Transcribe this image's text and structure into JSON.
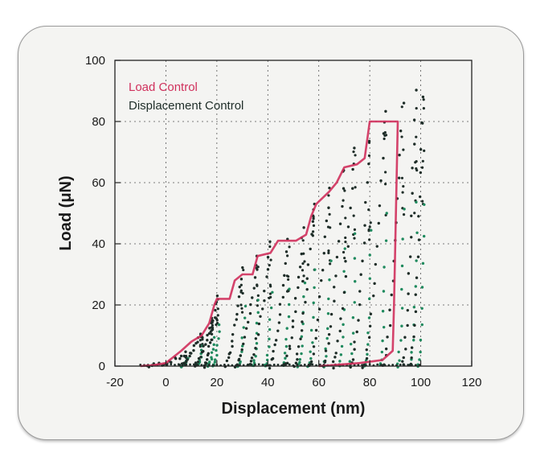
{
  "chart_data": {
    "type": "scatter",
    "title": "",
    "xlabel": "Displacement (nm)",
    "ylabel": "Load (μN)",
    "xlim": [
      -20,
      120
    ],
    "ylim": [
      0,
      100
    ],
    "xticks": [
      -20,
      0,
      20,
      40,
      60,
      80,
      100,
      120
    ],
    "yticks": [
      0,
      20,
      40,
      60,
      80,
      100
    ],
    "grid": true,
    "legend_position": "top-left",
    "colors": {
      "load_control": "#d0305c",
      "displacement_control": "#1e2d28",
      "unloading": "#1f8a5e",
      "grid": "#555555"
    },
    "series": [
      {
        "name": "Load Control",
        "style": "line",
        "points": [
          [
            -10,
            0
          ],
          [
            -5,
            0.3
          ],
          [
            0,
            1
          ],
          [
            3,
            3
          ],
          [
            6,
            5
          ],
          [
            10,
            8
          ],
          [
            14,
            10
          ],
          [
            17,
            14
          ],
          [
            19,
            20
          ],
          [
            20,
            22
          ],
          [
            25,
            22
          ],
          [
            27,
            28
          ],
          [
            30,
            30
          ],
          [
            34,
            30
          ],
          [
            36,
            36
          ],
          [
            41,
            37
          ],
          [
            44,
            41
          ],
          [
            51,
            41
          ],
          [
            55,
            43
          ],
          [
            57,
            49
          ],
          [
            59,
            53
          ],
          [
            64,
            57
          ],
          [
            67,
            60
          ],
          [
            70,
            65
          ],
          [
            75,
            66
          ],
          [
            78,
            68
          ],
          [
            80,
            80
          ],
          [
            89,
            80
          ],
          [
            91,
            80
          ],
          [
            90,
            40
          ],
          [
            89.5,
            20
          ],
          [
            89,
            5
          ],
          [
            85,
            2
          ],
          [
            76,
            1
          ],
          [
            65,
            0.3
          ],
          [
            60,
            0
          ]
        ]
      },
      {
        "name": "Displacement Control",
        "style": "points",
        "cycles": [
          {
            "x0": -10,
            "x1": 8,
            "peak": 4,
            "x2": 8.5
          },
          {
            "x0": 4,
            "x1": 14,
            "peak": 11,
            "x2": 14.5
          },
          {
            "x0": 10,
            "x1": 18,
            "peak": 15,
            "x2": 19
          },
          {
            "x0": 14,
            "x1": 20,
            "peak": 23,
            "x2": 21
          },
          {
            "x0": 22,
            "x1": 30,
            "peak": 32,
            "x2": 31
          },
          {
            "x0": 26,
            "x1": 36,
            "peak": 36,
            "x2": 36.5
          },
          {
            "x0": 31,
            "x1": 41,
            "peak": 40,
            "x2": 41.5
          },
          {
            "x0": 39,
            "x1": 48,
            "peak": 42,
            "x2": 48.5
          },
          {
            "x0": 45,
            "x1": 54,
            "peak": 46,
            "x2": 54.5
          },
          {
            "x0": 49,
            "x1": 58,
            "peak": 53,
            "x2": 58.5
          },
          {
            "x0": 55,
            "x1": 64,
            "peak": 58,
            "x2": 64.5
          },
          {
            "x0": 60,
            "x1": 70,
            "peak": 64,
            "x2": 70.5
          },
          {
            "x0": 64,
            "x1": 74,
            "peak": 72,
            "x2": 74.5
          },
          {
            "x0": 71,
            "x1": 80,
            "peak": 74,
            "x2": 80.5
          },
          {
            "x0": 76,
            "x1": 86,
            "peak": 84,
            "x2": 86.5
          },
          {
            "x0": 84,
            "x1": 93,
            "peak": 86,
            "x2": 93.5
          },
          {
            "x0": 92,
            "x1": 98,
            "peak": 90,
            "x2": 98.5
          },
          {
            "x0": 95,
            "x1": 101,
            "peak": 88,
            "x2": 101.5
          }
        ]
      }
    ]
  }
}
